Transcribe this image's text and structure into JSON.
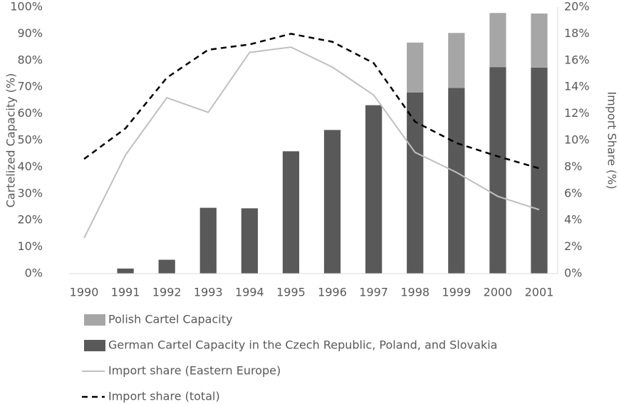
{
  "chart_data": {
    "type": "bar",
    "stacked": true,
    "categories": [
      "1990",
      "1991",
      "1992",
      "1993",
      "1994",
      "1995",
      "1996",
      "1997",
      "1998",
      "1999",
      "2000",
      "2001"
    ],
    "series": [
      {
        "name": "Polish Cartel Capacity",
        "color": "#a6a6a6",
        "stack_order": 1,
        "values": [
          0,
          0,
          0,
          0,
          0,
          0,
          0,
          0,
          18.7,
          20.6,
          20.3,
          20.3
        ]
      },
      {
        "name": "German Cartel Capacity in the Czech Republic, Poland, and Slovakia",
        "color": "#595959",
        "stack_order": 0,
        "values": [
          0,
          1.9,
          5.2,
          24.7,
          24.5,
          45.9,
          53.9,
          63.2,
          68,
          69.7,
          77.5,
          77.3
        ]
      },
      {
        "name": "Import share (Eastern Europe)",
        "type": "line",
        "axis": "y2",
        "color": "#bfbfbf",
        "dashed": false,
        "values": [
          2.67,
          8.9,
          13.2,
          12.1,
          16.6,
          17.0,
          15.5,
          13.4,
          9.1,
          7.6,
          5.8,
          4.8
        ]
      },
      {
        "name": "Import share (total)",
        "type": "line",
        "axis": "y2",
        "color": "#000000",
        "dashed": true,
        "values": [
          8.6,
          10.9,
          14.7,
          16.8,
          17.2,
          18.0,
          17.4,
          15.8,
          11.4,
          9.8,
          8.8,
          7.9
        ]
      }
    ],
    "ylabel": "Cartelized Capacity (%)",
    "y2label": "Import Share (%)",
    "ylim": [
      0,
      100
    ],
    "yticks": [
      {
        "value": 0,
        "label": "0%"
      },
      {
        "value": 10,
        "label": "10%"
      },
      {
        "value": 20,
        "label": "20%"
      },
      {
        "value": 30,
        "label": "30%"
      },
      {
        "value": 40,
        "label": "40%"
      },
      {
        "value": 50,
        "label": "50%"
      },
      {
        "value": 60,
        "label": "60%"
      },
      {
        "value": 70,
        "label": "70%"
      },
      {
        "value": 80,
        "label": "80%"
      },
      {
        "value": 90,
        "label": "90%"
      },
      {
        "value": 100,
        "label": "100%"
      }
    ],
    "y2lim": [
      0,
      20
    ],
    "y2ticks": [
      {
        "value": 0,
        "label": "0%"
      },
      {
        "value": 2,
        "label": "2%"
      },
      {
        "value": 4,
        "label": "4%"
      },
      {
        "value": 6,
        "label": "6%"
      },
      {
        "value": 8,
        "label": "8%"
      },
      {
        "value": 10,
        "label": "10%"
      },
      {
        "value": 12,
        "label": "12%"
      },
      {
        "value": 14,
        "label": "14%"
      },
      {
        "value": 16,
        "label": "16%"
      },
      {
        "value": 18,
        "label": "18%"
      },
      {
        "value": 20,
        "label": "20%"
      }
    ],
    "grid": false,
    "legend": "bottom"
  }
}
